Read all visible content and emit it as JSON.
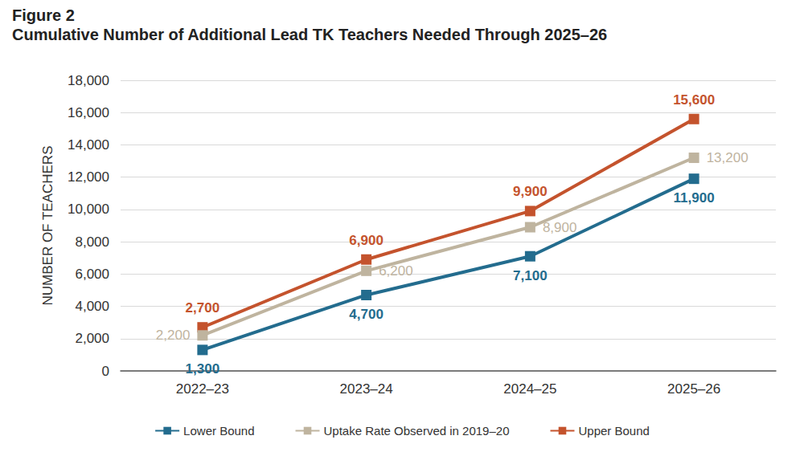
{
  "chart_data": {
    "type": "line",
    "title": "Figure 2",
    "subtitle": "Cumulative Number of Additional Lead TK Teachers Needed Through 2025–26",
    "y_label": "NUMBER OF TEACHERS",
    "categories": [
      "2022–23",
      "2023–24",
      "2024–25",
      "2025–26"
    ],
    "series": [
      {
        "name": "Lower Bound",
        "color": "#236c8e",
        "values": [
          1300,
          4700,
          7100,
          11900
        ],
        "value_labels": [
          "1,300",
          "4,700",
          "7,100",
          "11,900"
        ]
      },
      {
        "name": "Uptake Rate Observed in 2019–20",
        "color": "#bfb49f",
        "values": [
          2200,
          6200,
          8900,
          13200
        ],
        "value_labels": [
          "2,200",
          "6,200",
          "8,900",
          "13,200"
        ]
      },
      {
        "name": "Upper Bound",
        "color": "#c4532d",
        "values": [
          2700,
          6900,
          9900,
          15600
        ],
        "value_labels": [
          "2,700",
          "6,900",
          "9,900",
          "15,600"
        ]
      }
    ],
    "ylim": [
      0,
      18000
    ],
    "yticks": [
      0,
      {
        "value": 2000,
        "label": "2,000"
      },
      {
        "value": 4000,
        "label": "4,000"
      },
      {
        "value": 6000,
        "label": "6,000"
      },
      {
        "value": 8000,
        "label": "8,000"
      },
      {
        "value": 10000,
        "label": "10,000"
      },
      {
        "value": 12000,
        "label": "12,000"
      },
      {
        "value": 14000,
        "label": "14,000"
      },
      {
        "value": 16000,
        "label": "16,000"
      },
      {
        "value": 18000,
        "label": "18,000"
      }
    ],
    "grid": true,
    "legend": "bottom",
    "data_labels": true,
    "marker": "square",
    "line_style": "solid"
  }
}
